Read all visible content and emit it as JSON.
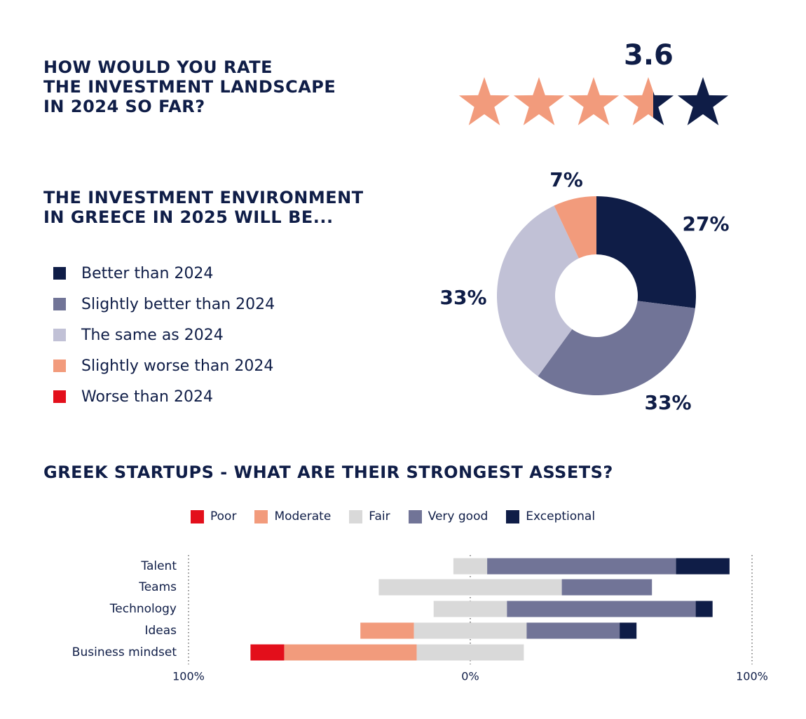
{
  "rating": {
    "heading": "HOW WOULD YOU RATE\nTHE INVESTMENT LANDSCAPE\nIN 2024 SO FAR?",
    "value_label": "3.6",
    "value": 3.6,
    "max_stars": 5,
    "filled_color": "#f29b7c",
    "empty_color": "#0f1d47"
  },
  "environment": {
    "heading": "THE INVESTMENT ENVIRONMENT\nIN GREECE IN 2025 WILL BE...",
    "legend": [
      {
        "label": "Better than 2024",
        "color": "#0f1d47"
      },
      {
        "label": "Slightly better than 2024",
        "color": "#717497"
      },
      {
        "label": "The same as 2024",
        "color": "#c1c1d6"
      },
      {
        "label": "Slightly worse than 2024",
        "color": "#f29b7c"
      },
      {
        "label": "Worse than 2024",
        "color": "#e30f1b"
      }
    ]
  },
  "assets": {
    "heading": "GREEK STARTUPS - WHAT ARE THEIR STRONGEST ASSETS?",
    "legend": [
      {
        "label": "Poor",
        "color": "#e30f1b"
      },
      {
        "label": "Moderate",
        "color": "#f29b7c"
      },
      {
        "label": "Fair",
        "color": "#d9d9d9"
      },
      {
        "label": "Very good",
        "color": "#717497"
      },
      {
        "label": "Exceptional",
        "color": "#0f1d47"
      }
    ]
  },
  "chart_data": [
    {
      "type": "pie",
      "donut": true,
      "categories": [
        "Better than 2024",
        "Slightly better than 2024",
        "The same as 2024",
        "Slightly worse than 2024"
      ],
      "values": [
        27,
        33,
        33,
        7
      ],
      "labels": [
        "27%",
        "33%",
        "33%",
        "7%"
      ],
      "colors": [
        "#0f1d47",
        "#717497",
        "#c1c1d6",
        "#f29b7c"
      ]
    },
    {
      "type": "bar",
      "orientation": "horizontal",
      "stacked": "diverging",
      "categories": [
        "Talent",
        "Teams",
        "Technology",
        "Ideas",
        "Business mindset"
      ],
      "series": [
        {
          "name": "Poor",
          "color": "#e30f1b",
          "values": [
            0,
            0,
            0,
            0,
            12
          ]
        },
        {
          "name": "Moderate",
          "color": "#f29b7c",
          "values": [
            0,
            0,
            0,
            19,
            47
          ]
        },
        {
          "name": "Fair",
          "color": "#d9d9d9",
          "values": [
            12,
            65,
            26,
            40,
            38
          ]
        },
        {
          "name": "Very good",
          "color": "#717497",
          "values": [
            67,
            32,
            67,
            33,
            0
          ]
        },
        {
          "name": "Exceptional",
          "color": "#0f1d47",
          "values": [
            19,
            0,
            6,
            6,
            0
          ]
        }
      ],
      "fair_center": 0.5,
      "xlim": [
        -100,
        100
      ],
      "xtick_labels": [
        "100%",
        "0%",
        "100%"
      ],
      "grid": true
    }
  ]
}
